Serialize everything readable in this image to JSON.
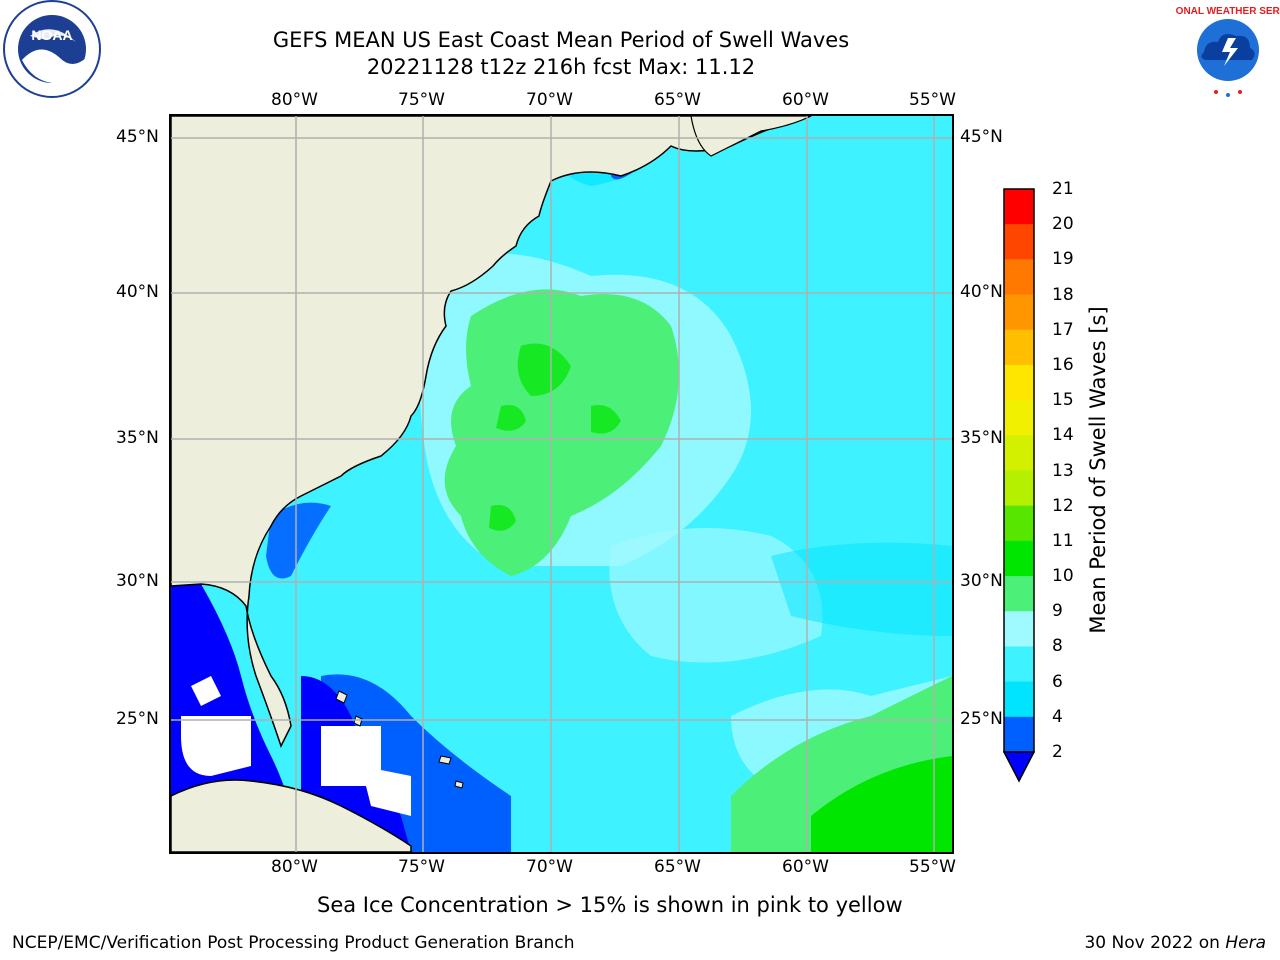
{
  "title": {
    "line1": "GEFS MEAN US East Coast Mean Period of Swell Waves",
    "line2": "20221128 t12z 216h fcst   Max: 11.12"
  },
  "logos": {
    "left": {
      "name": "NOAA",
      "text": "NATIONAL OCEANIC AND ATMOSPHERIC ADMINISTRATION · U.S. DEPARTMENT OF COMMERCE",
      "icon": "noaa-seal-icon"
    },
    "right": {
      "text": "NATIONAL WEATHER SERVICE",
      "icon": "nws-seal-icon"
    }
  },
  "map": {
    "lon_labels_top": [
      "80°W",
      "75°W",
      "70°W",
      "65°W",
      "60°W",
      "55°W"
    ],
    "lon_labels_bottom": [
      "80°W",
      "75°W",
      "70°W",
      "65°W",
      "60°W",
      "55°W"
    ],
    "lat_labels_left": [
      "45°N",
      "40°N",
      "35°N",
      "30°N",
      "25°N"
    ],
    "lat_labels_right": [
      "45°N",
      "40°N",
      "35°N",
      "30°N",
      "25°N"
    ],
    "lon_range": [
      -85,
      -54.3
    ],
    "lat_range": [
      20.5,
      46
    ],
    "colors": {
      "land": "#eeeedc",
      "ocean_base": "#3ff2ff",
      "grid": "#b0b0b0",
      "no_data": "#ffffff"
    }
  },
  "colorbar": {
    "title": "Mean Period of Swell Waves [s]",
    "tick_labels": [
      "21",
      "20",
      "19",
      "18",
      "17",
      "16",
      "15",
      "14",
      "13",
      "12",
      "11",
      "10",
      "9",
      "8",
      "6",
      "4",
      "2"
    ],
    "bins": [
      {
        "low": 2,
        "high": 4,
        "color": "#0060ff"
      },
      {
        "low": 4,
        "high": 6,
        "color": "#00e4ff"
      },
      {
        "low": 6,
        "high": 8,
        "color": "#3ff2ff"
      },
      {
        "low": 8,
        "high": 9,
        "color": "#9ffaff"
      },
      {
        "low": 9,
        "high": 10,
        "color": "#4cf078"
      },
      {
        "low": 10,
        "high": 11,
        "color": "#00e600"
      },
      {
        "low": 11,
        "high": 12,
        "color": "#56e600"
      },
      {
        "low": 12,
        "high": 13,
        "color": "#b4f000"
      },
      {
        "low": 13,
        "high": 14,
        "color": "#d2f000"
      },
      {
        "low": 14,
        "high": 15,
        "color": "#f0f000"
      },
      {
        "low": 15,
        "high": 16,
        "color": "#ffe600"
      },
      {
        "low": 16,
        "high": 17,
        "color": "#ffbe00"
      },
      {
        "low": 17,
        "high": 18,
        "color": "#ff9600"
      },
      {
        "low": 18,
        "high": 19,
        "color": "#ff7800"
      },
      {
        "low": 19,
        "high": 20,
        "color": "#ff4600"
      },
      {
        "low": 20,
        "high": 21,
        "color": "#ff0000"
      }
    ],
    "under_color": "#0000ff"
  },
  "subtitle": "Sea Ice Concentration > 15% is shown in pink to yellow",
  "footer": {
    "left": "NCEP/EMC/Verification Post Processing Product Generation Branch",
    "date": "30 Nov 2022 on",
    "machine": "Hera"
  }
}
